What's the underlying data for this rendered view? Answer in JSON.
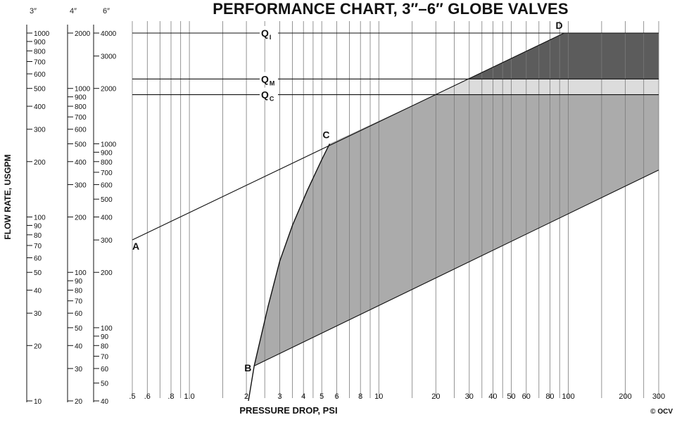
{
  "chart_data": {
    "type": "area",
    "title": "PERFORMANCE CHART, 3″–6″ GLOBE VALVES",
    "xlabel": "PRESSURE DROP, PSI",
    "ylabel": "FLOW RATE, USGPM",
    "x_scale": "log",
    "xlim": [
      0.5,
      300
    ],
    "x_ticks": [
      {
        "v": 0.5,
        "label": ".5"
      },
      {
        "v": 0.6,
        "label": ".6"
      },
      {
        "v": 0.8,
        "label": ".8"
      },
      {
        "v": 1.0,
        "label": "1.0"
      },
      {
        "v": 2,
        "label": "2"
      },
      {
        "v": 3,
        "label": "3"
      },
      {
        "v": 4,
        "label": "4"
      },
      {
        "v": 5,
        "label": "5"
      },
      {
        "v": 6,
        "label": "6"
      },
      {
        "v": 8,
        "label": "8"
      },
      {
        "v": 10,
        "label": "10"
      },
      {
        "v": 20,
        "label": "20"
      },
      {
        "v": 30,
        "label": "30"
      },
      {
        "v": 40,
        "label": "40"
      },
      {
        "v": 50,
        "label": "50"
      },
      {
        "v": 60,
        "label": "60"
      },
      {
        "v": 80,
        "label": "80"
      },
      {
        "v": 100,
        "label": "100"
      },
      {
        "v": 200,
        "label": "200"
      },
      {
        "v": 300,
        "label": "300"
      }
    ],
    "x_minor_grid": [
      0.7,
      0.9,
      1.5,
      2.5,
      3.5,
      4.5,
      7,
      9,
      15,
      25,
      35,
      45,
      70,
      90,
      150,
      250
    ],
    "y_axes": [
      {
        "size": "3″",
        "min": 10,
        "max": 1000,
        "ticks": [
          {
            "v": 1000,
            "label": "1000"
          },
          {
            "v": 900,
            "label": "900"
          },
          {
            "v": 800,
            "label": "800"
          },
          {
            "v": 700,
            "label": "700"
          },
          {
            "v": 600,
            "label": "600"
          },
          {
            "v": 500,
            "label": "500"
          },
          {
            "v": 400,
            "label": "400"
          },
          {
            "v": 300,
            "label": "300"
          },
          {
            "v": 200,
            "label": "200"
          },
          {
            "v": 100,
            "label": "100"
          },
          {
            "v": 90,
            "label": "90"
          },
          {
            "v": 80,
            "label": "80"
          },
          {
            "v": 70,
            "label": "70"
          },
          {
            "v": 60,
            "label": "60"
          },
          {
            "v": 50,
            "label": "50"
          },
          {
            "v": 40,
            "label": "40"
          },
          {
            "v": 30,
            "label": "30"
          },
          {
            "v": 20,
            "label": "20"
          },
          {
            "v": 10,
            "label": "10"
          }
        ]
      },
      {
        "size": "4″",
        "min": 20,
        "max": 2000,
        "ticks": [
          {
            "v": 2000,
            "label": "2000"
          },
          {
            "v": 1000,
            "label": "1000"
          },
          {
            "v": 900,
            "label": "900"
          },
          {
            "v": 800,
            "label": "800"
          },
          {
            "v": 700,
            "label": "700"
          },
          {
            "v": 600,
            "label": "600"
          },
          {
            "v": 500,
            "label": "500"
          },
          {
            "v": 400,
            "label": "400"
          },
          {
            "v": 300,
            "label": "300"
          },
          {
            "v": 200,
            "label": "200"
          },
          {
            "v": 100,
            "label": "100"
          },
          {
            "v": 90,
            "label": "90"
          },
          {
            "v": 80,
            "label": "80"
          },
          {
            "v": 70,
            "label": "70"
          },
          {
            "v": 60,
            "label": "60"
          },
          {
            "v": 50,
            "label": "50"
          },
          {
            "v": 40,
            "label": "40"
          },
          {
            "v": 30,
            "label": "30"
          },
          {
            "v": 20,
            "label": "20"
          }
        ]
      },
      {
        "size": "6″",
        "min": 40,
        "max": 4000,
        "ticks": [
          {
            "v": 4000,
            "label": "4000"
          },
          {
            "v": 3000,
            "label": "3000"
          },
          {
            "v": 2000,
            "label": "2000"
          },
          {
            "v": 1000,
            "label": "1000"
          },
          {
            "v": 900,
            "label": "900"
          },
          {
            "v": 800,
            "label": "800"
          },
          {
            "v": 700,
            "label": "700"
          },
          {
            "v": 600,
            "label": "600"
          },
          {
            "v": 500,
            "label": "500"
          },
          {
            "v": 400,
            "label": "400"
          },
          {
            "v": 300,
            "label": "300"
          },
          {
            "v": 200,
            "label": "200"
          },
          {
            "v": 100,
            "label": "100"
          },
          {
            "v": 90,
            "label": "90"
          },
          {
            "v": 80,
            "label": "80"
          },
          {
            "v": 70,
            "label": "70"
          },
          {
            "v": 60,
            "label": "60"
          },
          {
            "v": 50,
            "label": "50"
          },
          {
            "v": 40,
            "label": "40"
          }
        ]
      }
    ],
    "reference_lines": [
      {
        "label": "Q",
        "sub": "I",
        "flow_6in": 4000
      },
      {
        "label": "Q",
        "sub": "M",
        "flow_6in": 2250
      },
      {
        "label": "Q",
        "sub": "C",
        "flow_6in": 1850
      }
    ],
    "points": [
      {
        "name": "A",
        "x": 0.5,
        "flow_6in": 300
      },
      {
        "name": "B",
        "x": 2.2,
        "flow_6in": 62
      },
      {
        "name": "C",
        "x": 5.5,
        "flow_6in": 1000
      },
      {
        "name": "D",
        "x": 95,
        "flow_6in": 4000
      }
    ],
    "curves": {
      "upper_line": [
        [
          0.5,
          300
        ],
        [
          95,
          4000
        ]
      ],
      "lower_line": [
        [
          2.2,
          62
        ],
        [
          300,
          720
        ]
      ],
      "left_curve": [
        [
          2.05,
          40
        ],
        [
          2.2,
          62
        ],
        [
          2.6,
          130
        ],
        [
          3.0,
          230
        ],
        [
          3.5,
          360
        ],
        [
          4.2,
          560
        ],
        [
          5.0,
          820
        ],
        [
          5.5,
          1000
        ]
      ]
    },
    "regions": [
      {
        "name": "normal-operating-range",
        "color": "#ababab"
      },
      {
        "name": "intermittent-range",
        "color": "#5c5c5c"
      },
      {
        "name": "momentary-range",
        "color": "#dcdcdc"
      }
    ],
    "colors": {
      "grid": "#7a7a7a",
      "ink": "#111111"
    }
  },
  "page": {
    "copyright": "© OCV"
  }
}
